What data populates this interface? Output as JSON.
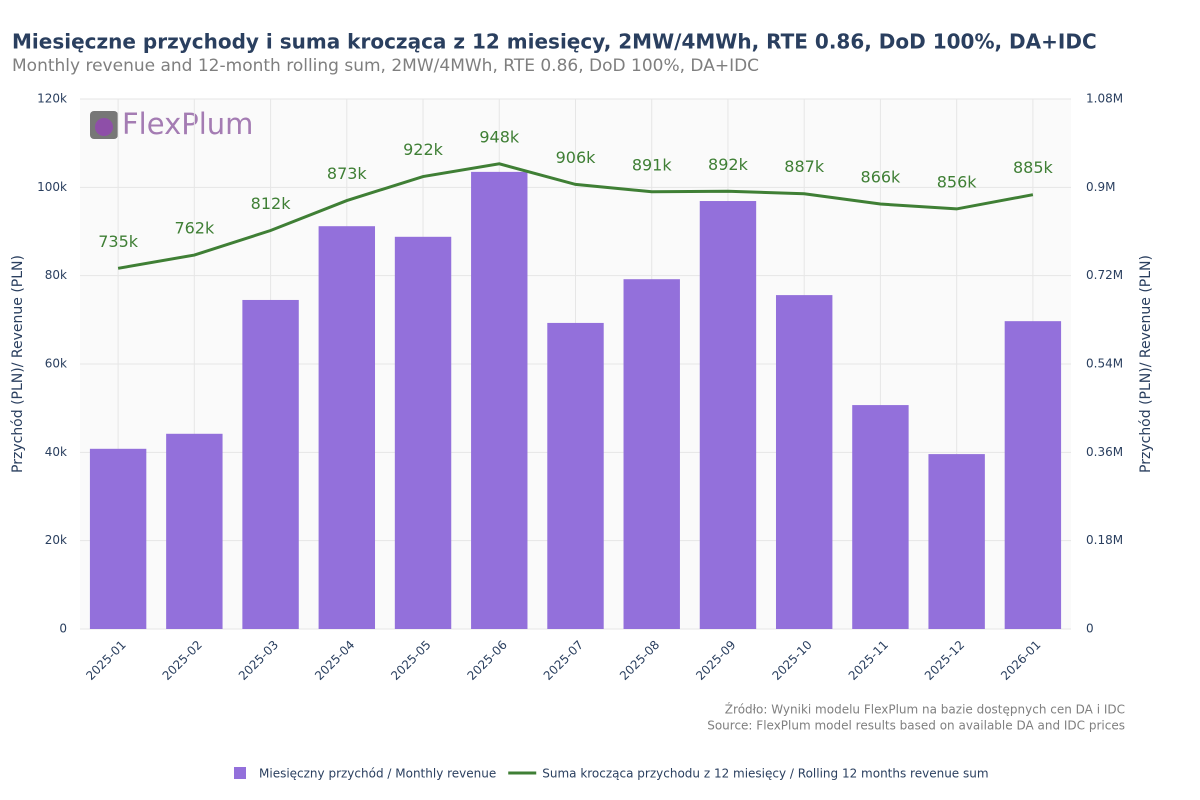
{
  "chart_data": {
    "type": "bar",
    "title": "Miesięczne przychody i suma krocząca z 12 miesięcy, 2MW/4MWh, RTE 0.86, DoD 100%, DA+IDC",
    "subtitle": "Monthly revenue and 12-month rolling sum, 2MW/4MWh, RTE 0.86, DoD 100%, DA+IDC",
    "logo_text": "FlexPlum",
    "y_label": "Przychód (PLN)/ Revenue (PLN)",
    "y2_label": "Przychód (PLN)/ Revenue (PLN)",
    "annotations": [
      "Źródło: Wyniki modelu FlexPlum na bazie dostępnych cen DA i IDC",
      "Source: FlexPlum model results based on available DA and IDC prices"
    ],
    "categories": [
      "2025-01",
      "2025-02",
      "2025-03",
      "2025-04",
      "2025-05",
      "2025-06",
      "2025-07",
      "2025-08",
      "2025-09",
      "2025-10",
      "2025-11",
      "2025-12",
      "2026-01"
    ],
    "series": [
      {
        "name": "Miesięczny przychód / Monthly revenue",
        "type": "bar",
        "color": "#9370db",
        "values": [
          40800,
          44200,
          74500,
          91200,
          88800,
          103500,
          69300,
          79200,
          96900,
          75600,
          50700,
          39600,
          69700
        ]
      },
      {
        "name": "Suma krocząca przychodu z 12 miesięcy / Rolling 12 months revenue sum",
        "type": "line",
        "axis": "y2",
        "color": "#3f7f35",
        "values": [
          735000,
          762000,
          812000,
          873000,
          922000,
          948000,
          906000,
          891000,
          892000,
          887000,
          866000,
          856000,
          885000
        ],
        "value_labels": [
          "735k",
          "762k",
          "812k",
          "873k",
          "922k",
          "948k",
          "906k",
          "891k",
          "892k",
          "887k",
          "866k",
          "856k",
          "885k"
        ]
      }
    ],
    "ylim": [
      0,
      120000
    ],
    "yticks": [
      0,
      {
        "value": 20000,
        "label": "20k"
      },
      {
        "value": 40000,
        "label": "40k"
      },
      {
        "value": 60000,
        "label": "60k"
      },
      {
        "value": 80000,
        "label": "80k"
      },
      {
        "value": 100000,
        "label": "100k"
      },
      {
        "value": 120000,
        "label": "120k"
      }
    ],
    "y2lim": [
      0,
      1080000
    ],
    "y2ticks": [
      0,
      {
        "value": 180000,
        "label": "0.18M"
      },
      {
        "value": 360000,
        "label": "0.36M"
      },
      {
        "value": 540000,
        "label": "0.54M"
      },
      {
        "value": 720000,
        "label": "0.72M"
      },
      {
        "value": 900000,
        "label": "0.9M"
      },
      {
        "value": 1080000,
        "label": "1.08M"
      }
    ],
    "grid": true
  }
}
